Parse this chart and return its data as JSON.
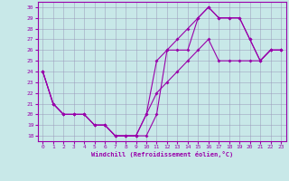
{
  "xlabel": "Windchill (Refroidissement éolien,°C)",
  "xlim": [
    -0.5,
    23.5
  ],
  "ylim": [
    17.5,
    30.5
  ],
  "yticks": [
    18,
    19,
    20,
    21,
    22,
    23,
    24,
    25,
    26,
    27,
    28,
    29,
    30
  ],
  "xticks": [
    0,
    1,
    2,
    3,
    4,
    5,
    6,
    7,
    8,
    9,
    10,
    11,
    12,
    13,
    14,
    15,
    16,
    17,
    18,
    19,
    20,
    21,
    22,
    23
  ],
  "background_color": "#c8e8e8",
  "line_color": "#9900aa",
  "grid_color": "#aaaacc",
  "line1_x": [
    0,
    1,
    2,
    3,
    4,
    5,
    6,
    7,
    8,
    9,
    10,
    11,
    12,
    13,
    14,
    15,
    16,
    17,
    18,
    19,
    20,
    21,
    22,
    23
  ],
  "line1_y": [
    24,
    21,
    20,
    20,
    20,
    19,
    19,
    18,
    18,
    18,
    18,
    20,
    26,
    26,
    26,
    29,
    30,
    29,
    29,
    29,
    27,
    25,
    26,
    26
  ],
  "line2_x": [
    0,
    1,
    2,
    3,
    4,
    5,
    6,
    7,
    8,
    9,
    10,
    11,
    12,
    13,
    14,
    15,
    16,
    17,
    18,
    19,
    20,
    21,
    22,
    23
  ],
  "line2_y": [
    24,
    21,
    20,
    20,
    20,
    19,
    19,
    18,
    18,
    18,
    20,
    25,
    26,
    27,
    28,
    29,
    30,
    29,
    29,
    29,
    27,
    25,
    26,
    26
  ],
  "line3_x": [
    0,
    1,
    2,
    3,
    4,
    5,
    6,
    7,
    8,
    9,
    10,
    11,
    12,
    13,
    14,
    15,
    16,
    17,
    18,
    19,
    20,
    21,
    22,
    23
  ],
  "line3_y": [
    24,
    21,
    20,
    20,
    20,
    19,
    19,
    18,
    18,
    18,
    20,
    22,
    23,
    24,
    25,
    26,
    27,
    25,
    25,
    25,
    25,
    25,
    26,
    26
  ]
}
